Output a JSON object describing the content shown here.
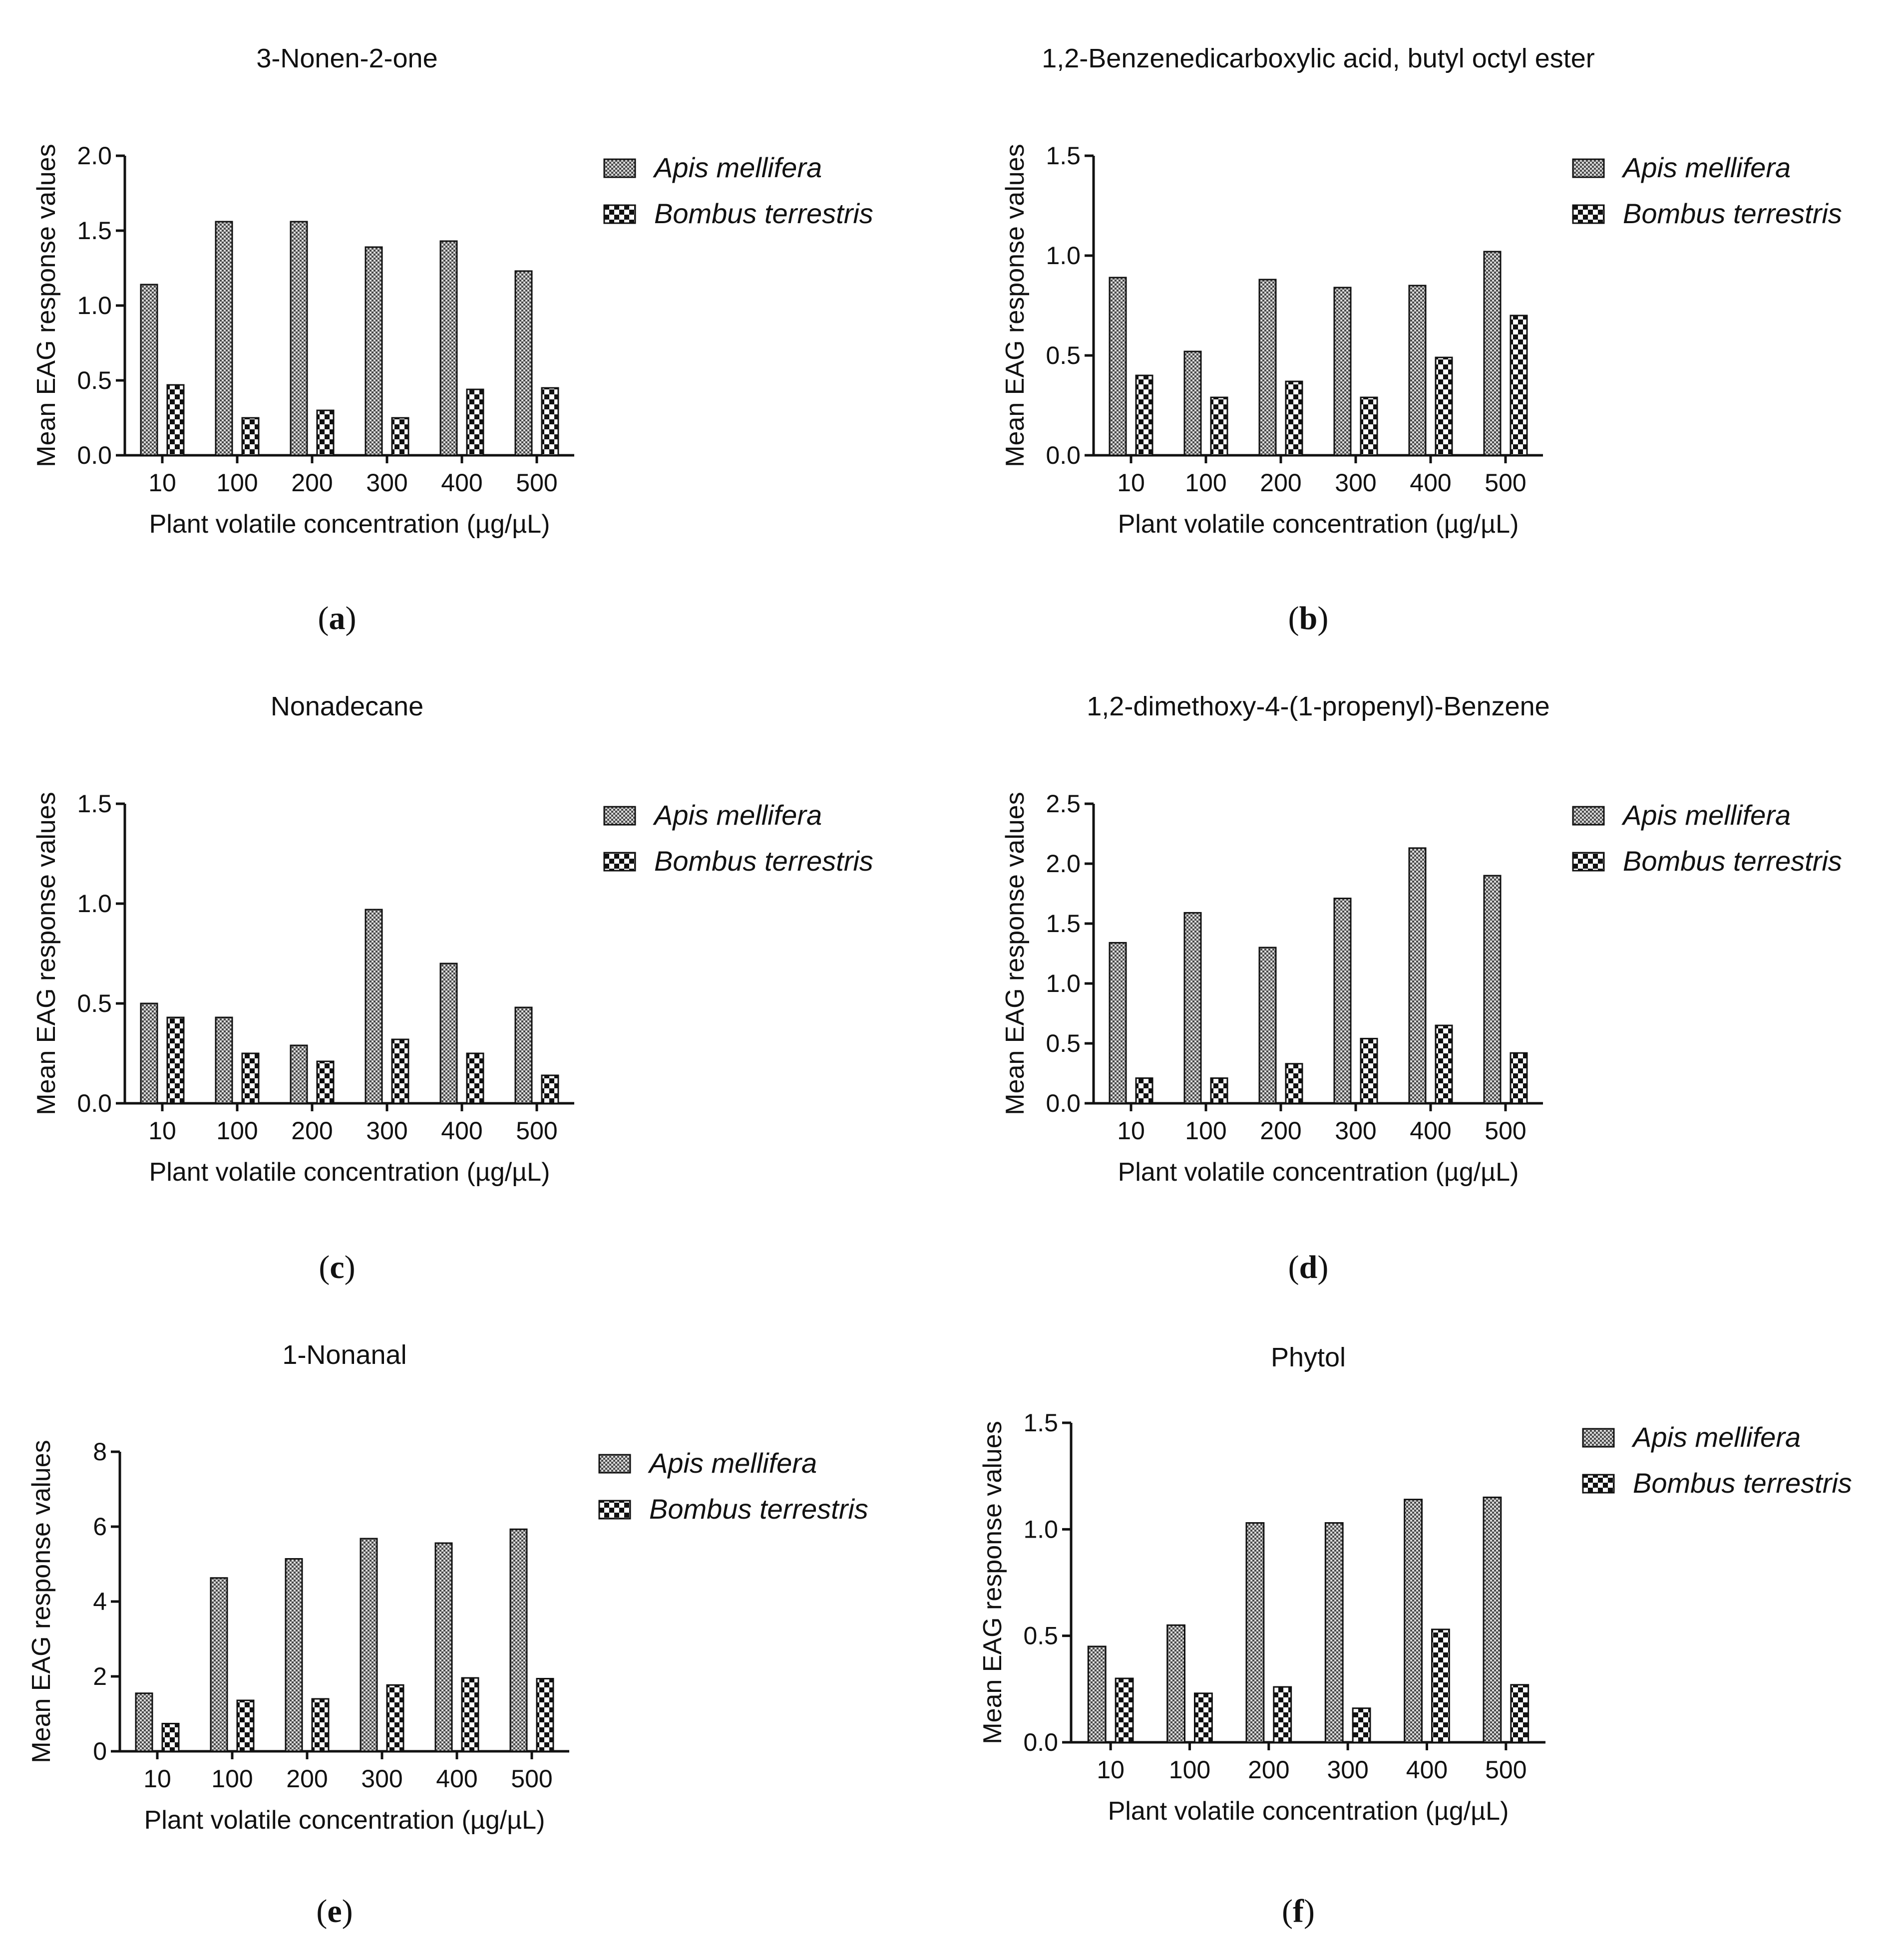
{
  "figure": {
    "panels": [
      "(a)",
      "(b)",
      "(c)",
      "(d)",
      "(e)",
      "(f)"
    ]
  },
  "chart_data": [
    {
      "type": "bar",
      "panel_label": "(a)",
      "title": "3-Nonen-2-one",
      "xlabel": "Plant volatile concentration (µg/µL)",
      "ylabel": "Mean EAG response values",
      "categories": [
        "10",
        "100",
        "200",
        "300",
        "400",
        "500"
      ],
      "ylim": [
        0,
        2.0
      ],
      "yticks": [
        "0.0",
        "0.5",
        "1.0",
        "1.5",
        "2.0"
      ],
      "series": [
        {
          "name": "Apis mellifera",
          "values": [
            1.14,
            1.56,
            1.56,
            1.39,
            1.43,
            1.23
          ]
        },
        {
          "name": "Bombus terrestris",
          "values": [
            0.47,
            0.25,
            0.3,
            0.25,
            0.44,
            0.45
          ]
        }
      ],
      "legend": "right"
    },
    {
      "type": "bar",
      "panel_label": "(b)",
      "title": "1,2-Benzenedicarboxylic acid, butyl octyl ester",
      "xlabel": "Plant volatile concentration (µg/µL)",
      "ylabel": "Mean EAG response values",
      "categories": [
        "10",
        "100",
        "200",
        "300",
        "400",
        "500"
      ],
      "ylim": [
        0,
        1.5
      ],
      "yticks": [
        "0.0",
        "0.5",
        "1.0",
        "1.5"
      ],
      "series": [
        {
          "name": "Apis mellifera",
          "values": [
            0.89,
            0.52,
            0.88,
            0.84,
            0.85,
            1.02
          ]
        },
        {
          "name": "Bombus terrestris",
          "values": [
            0.4,
            0.29,
            0.37,
            0.29,
            0.49,
            0.7
          ]
        }
      ],
      "legend": "right"
    },
    {
      "type": "bar",
      "panel_label": "(c)",
      "title": "Nonadecane",
      "xlabel": "Plant volatile concentration (µg/µL)",
      "ylabel": "Mean EAG response values",
      "categories": [
        "10",
        "100",
        "200",
        "300",
        "400",
        "500"
      ],
      "ylim": [
        0,
        1.5
      ],
      "yticks": [
        "0.0",
        "0.5",
        "1.0",
        "1.5"
      ],
      "series": [
        {
          "name": "Apis mellifera",
          "values": [
            0.5,
            0.43,
            0.29,
            0.97,
            0.7,
            0.48
          ]
        },
        {
          "name": "Bombus terrestris",
          "values": [
            0.43,
            0.25,
            0.21,
            0.32,
            0.25,
            0.14
          ]
        }
      ],
      "legend": "right"
    },
    {
      "type": "bar",
      "panel_label": "(d)",
      "title": "1,2-dimethoxy-4-(1-propenyl)-Benzene",
      "xlabel": "Plant volatile concentration (µg/µL)",
      "ylabel": "Mean EAG response values",
      "categories": [
        "10",
        "100",
        "200",
        "300",
        "400",
        "500"
      ],
      "ylim": [
        0,
        2.5
      ],
      "yticks": [
        "0.0",
        "0.5",
        "1.0",
        "1.5",
        "2.0",
        "2.5"
      ],
      "series": [
        {
          "name": "Apis mellifera",
          "values": [
            1.34,
            1.59,
            1.3,
            1.71,
            2.13,
            1.9
          ]
        },
        {
          "name": "Bombus terrestris",
          "values": [
            0.21,
            0.21,
            0.33,
            0.54,
            0.65,
            0.42
          ]
        }
      ],
      "legend": "right"
    },
    {
      "type": "bar",
      "panel_label": "(e)",
      "title": "1-Nonanal",
      "xlabel": "Plant volatile concentration (µg/µL)",
      "ylabel": "Mean EAG response values",
      "categories": [
        "10",
        "100",
        "200",
        "300",
        "400",
        "500"
      ],
      "ylim": [
        0,
        8
      ],
      "yticks": [
        "0",
        "2",
        "4",
        "6",
        "8"
      ],
      "series": [
        {
          "name": "Apis mellifera",
          "values": [
            1.55,
            4.63,
            5.14,
            5.68,
            5.56,
            5.93
          ]
        },
        {
          "name": "Bombus terrestris",
          "values": [
            0.74,
            1.36,
            1.4,
            1.77,
            1.96,
            1.94
          ]
        }
      ],
      "legend": "right"
    },
    {
      "type": "bar",
      "panel_label": "(f)",
      "title": "Phytol",
      "xlabel": "Plant volatile concentration (µg/µL)",
      "ylabel": "Mean EAG response values",
      "categories": [
        "10",
        "100",
        "200",
        "300",
        "400",
        "500"
      ],
      "ylim": [
        0,
        1.5
      ],
      "yticks": [
        "0.0",
        "0.5",
        "1.0",
        "1.5"
      ],
      "series": [
        {
          "name": "Apis mellifera",
          "values": [
            0.45,
            0.55,
            1.03,
            1.03,
            1.14,
            1.15
          ]
        },
        {
          "name": "Bombus terrestris",
          "values": [
            0.3,
            0.23,
            0.26,
            0.16,
            0.53,
            0.27
          ]
        }
      ],
      "legend": "right"
    }
  ]
}
